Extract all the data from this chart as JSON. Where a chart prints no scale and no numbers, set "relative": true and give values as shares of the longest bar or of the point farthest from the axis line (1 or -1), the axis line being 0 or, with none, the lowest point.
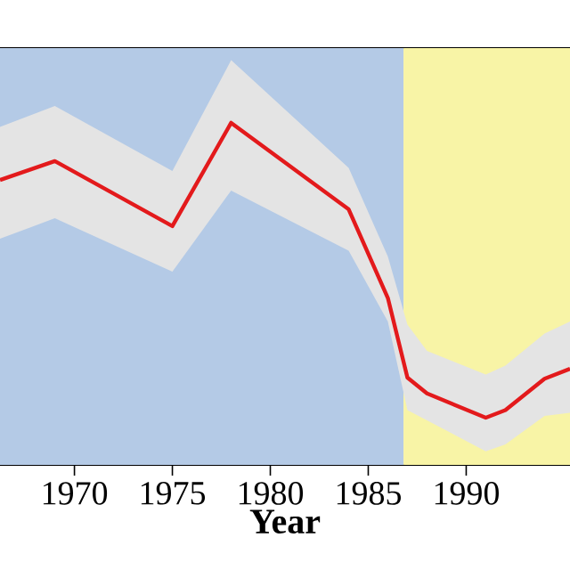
{
  "chart_data": {
    "type": "line",
    "xlabel": "Year",
    "relative": true,
    "x": [
      1966.2,
      1969,
      1975,
      1978,
      1984,
      1986,
      1987,
      1988,
      1991,
      1992,
      1994,
      1995.3
    ],
    "xlim": [
      1966.2,
      1995.3
    ],
    "xticks": [
      1970,
      1975,
      1980,
      1985,
      1990
    ],
    "series": [
      {
        "color": "#e31a1c",
        "values": [
          0.833,
          0.888,
          0.698,
          1.0,
          0.747,
          0.488,
          0.255,
          0.209,
          0.138,
          0.16,
          0.252,
          0.281
        ],
        "lower": [
          0.661,
          0.721,
          0.565,
          0.802,
          0.626,
          0.419,
          0.16,
          0.13,
          0.04,
          0.06,
          0.143,
          0.152
        ],
        "upper": [
          0.988,
          1.049,
          0.859,
          1.183,
          0.868,
          0.609,
          0.41,
          0.333,
          0.264,
          0.29,
          0.384,
          0.419
        ]
      }
    ],
    "bands": [
      {
        "axis": "x",
        "from": 1966.2,
        "to": 1986.8,
        "color": "#b4cae6"
      },
      {
        "axis": "x",
        "from": 1986.8,
        "to": 1995.3,
        "color": "#f8f4a6"
      }
    ],
    "marker": "none",
    "line_style": "solid"
  }
}
